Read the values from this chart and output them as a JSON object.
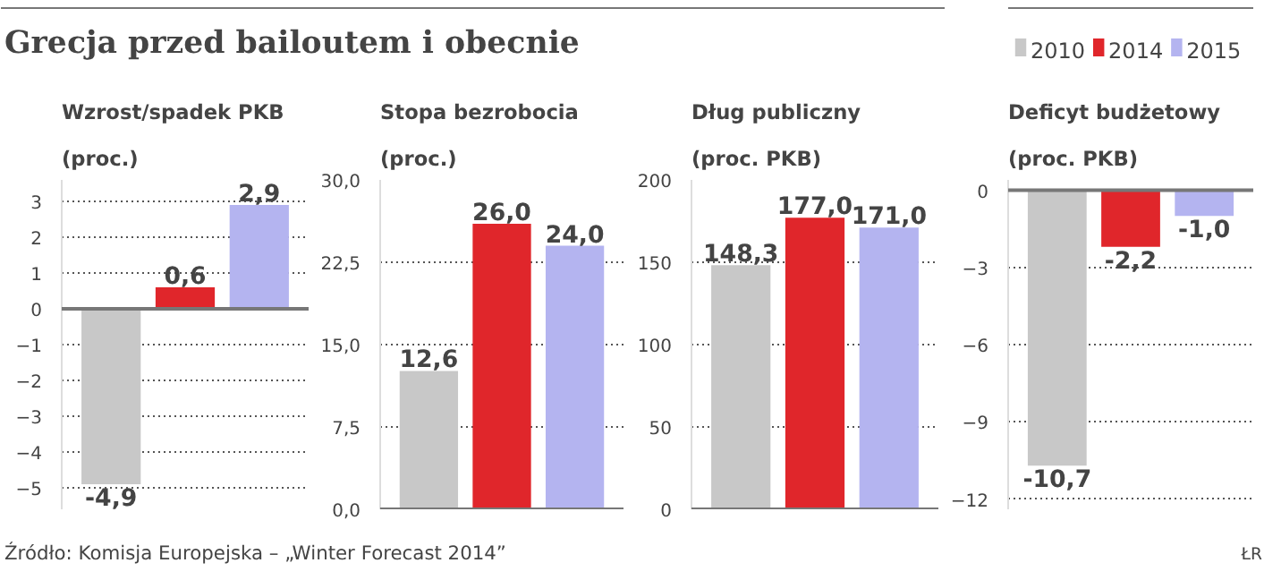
{
  "chart_data": [
    {
      "type": "other",
      "title": "Grecja przed bailoutem i obecnie",
      "annotations": [
        "Źródło: Komisja Europejska – „Winter Forecast 2014”",
        "ŁR"
      ]
    },
    {
      "type": "bar",
      "title": "Wzrost/spadek PKB",
      "subtitle": "(proc.)",
      "categories": [
        null
      ],
      "grid": "y",
      "tick_labels": "y",
      "ylim": [
        -5.6,
        3.6
      ],
      "yticks": [
        -5,
        -4,
        -3,
        -2,
        -1,
        0,
        1,
        2,
        3
      ],
      "series": [
        {
          "color": "#c8c8c8",
          "values": [
            -4.9
          ],
          "value_labels": [
            "-4,9"
          ]
        },
        {
          "color": "#e0262b",
          "values": [
            0.6
          ],
          "value_labels": [
            "0,6"
          ]
        },
        {
          "color": "#b4b4f0",
          "values": [
            2.9
          ],
          "value_labels": [
            "2,9"
          ]
        }
      ]
    },
    {
      "type": "bar",
      "title": "Stopa bezrobocia",
      "subtitle": "(proc.)",
      "categories": [
        null
      ],
      "grid": "y",
      "tick_labels": "y",
      "ylim": [
        0,
        30
      ],
      "yticks": [
        {
          "value": 0,
          "label": "0,0"
        },
        {
          "value": 7.5,
          "label": "7,5"
        },
        {
          "value": 15,
          "label": "15,0"
        },
        {
          "value": 22.5,
          "label": "22,5"
        },
        {
          "value": 30,
          "label": "30,0"
        }
      ],
      "series": [
        {
          "color": "#c8c8c8",
          "values": [
            12.6
          ],
          "value_labels": [
            "12,6"
          ]
        },
        {
          "color": "#e0262b",
          "values": [
            26.0
          ],
          "value_labels": [
            "26,0"
          ]
        },
        {
          "color": "#b4b4f0",
          "values": [
            24.0
          ],
          "value_labels": [
            "24,0"
          ]
        }
      ]
    },
    {
      "type": "bar",
      "title": "Dług publiczny",
      "subtitle": "(proc. PKB)",
      "categories": [
        null
      ],
      "grid": "y",
      "tick_labels": "y",
      "ylim": [
        0,
        200
      ],
      "yticks": [
        0,
        50,
        100,
        150,
        200
      ],
      "series": [
        {
          "color": "#c8c8c8",
          "values": [
            148.3
          ],
          "value_labels": [
            "148,3"
          ]
        },
        {
          "color": "#e0262b",
          "values": [
            177.0
          ],
          "value_labels": [
            "177,0"
          ]
        },
        {
          "color": "#b4b4f0",
          "values": [
            171.0
          ],
          "value_labels": [
            "171,0"
          ]
        }
      ]
    },
    {
      "type": "bar",
      "title": "Deficyt budżetowy",
      "subtitle": "(proc. PKB)",
      "categories": [
        null
      ],
      "grid": "y",
      "tick_labels": "y",
      "legend": "top right",
      "ylim": [
        -12.4,
        0.4
      ],
      "yticks": [
        -12,
        -9,
        -6,
        -3,
        0
      ],
      "series": [
        {
          "name": "2010",
          "color": "#c8c8c8",
          "values": [
            -10.7
          ],
          "value_labels": [
            "-10,7"
          ]
        },
        {
          "name": "2014",
          "color": "#e0262b",
          "values": [
            -2.2
          ],
          "value_labels": [
            "-2,2"
          ]
        },
        {
          "name": "2015",
          "color": "#b4b4f0",
          "values": [
            -1.0
          ],
          "value_labels": [
            "-1,0"
          ]
        }
      ]
    }
  ]
}
